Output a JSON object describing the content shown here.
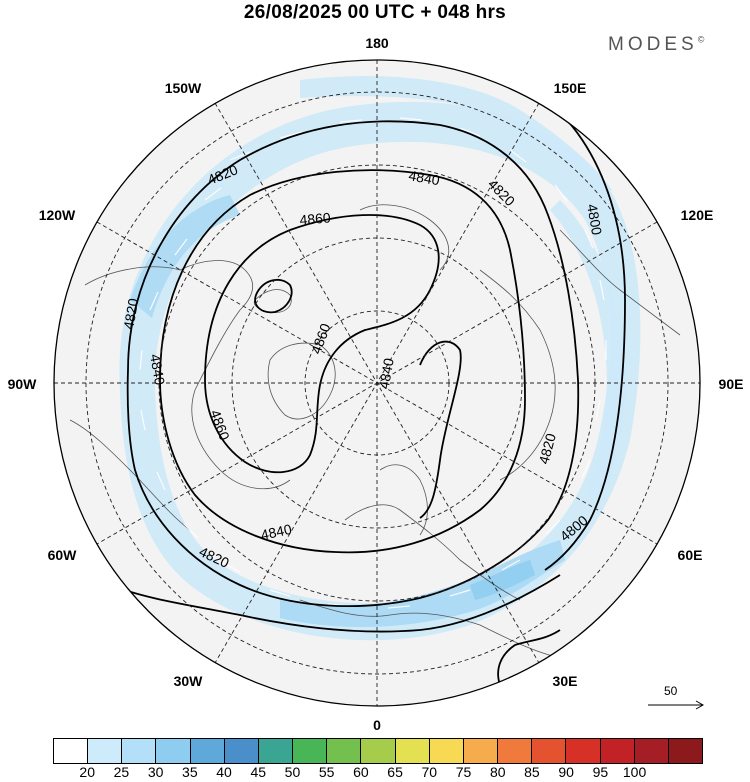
{
  "title": "26/08/2025  00 UTC  + 048 hrs",
  "brand": "MODES",
  "brand_mark": "©",
  "longitude_labels": {
    "lon_180": "180",
    "lon_150w": "150W",
    "lon_150e": "150E",
    "lon_120w": "120W",
    "lon_120e": "120E",
    "lon_90w": "90W",
    "lon_90e": "90E",
    "lon_60w": "60W",
    "lon_60e": "60E",
    "lon_30w": "30W",
    "lon_30e": "30E",
    "lon_0": "0"
  },
  "contour_labels": {
    "c4820_a": "4820",
    "c4840_a": "4840",
    "c4820_b": "4820",
    "c4800_a": "4800",
    "c4860_a": "4860",
    "c4820_c": "4820",
    "c4840_b": "4840",
    "c4860_b": "4860",
    "c4840_c": "4840",
    "c4860_c": "4860",
    "c4820_d": "4820",
    "c4840_d": "4840",
    "c4820_e": "4820",
    "c4800_b": "4800"
  },
  "reference_vector": "50",
  "colorbar": {
    "colors": [
      "#ffffff",
      "#cdebfb",
      "#b3e0f8",
      "#8fcdf0",
      "#5ea8da",
      "#4a8fc9",
      "#3aa592",
      "#48b556",
      "#73c04f",
      "#a6cc4b",
      "#e3e152",
      "#f7d954",
      "#f6ab4c",
      "#f07a3c",
      "#e55230",
      "#d73127",
      "#c22126",
      "#a61e25",
      "#8c1a1d"
    ],
    "ticks": [
      "20",
      "25",
      "30",
      "35",
      "40",
      "45",
      "50",
      "55",
      "60",
      "65",
      "70",
      "75",
      "80",
      "85",
      "90",
      "95",
      "100"
    ]
  }
}
